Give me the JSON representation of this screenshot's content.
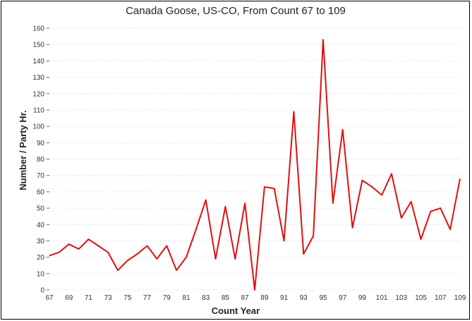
{
  "chart_data": {
    "type": "line",
    "title": "Canada Goose, US-CO,  From Count 67 to 109",
    "xlabel": "Count Year",
    "ylabel": "Number / Party Hr.",
    "xlim": [
      67,
      109
    ],
    "ylim": [
      0,
      160
    ],
    "y_ticks": [
      0,
      10,
      20,
      30,
      40,
      50,
      60,
      70,
      80,
      90,
      100,
      110,
      120,
      130,
      140,
      150,
      160
    ],
    "x_ticks": [
      67,
      69,
      71,
      73,
      75,
      77,
      79,
      81,
      83,
      85,
      87,
      89,
      91,
      93,
      95,
      97,
      99,
      101,
      103,
      105,
      107,
      109
    ],
    "grid": true,
    "colors": {
      "series": "#dd1111",
      "grid": "#e6e6e6",
      "frame": "#000000"
    },
    "series": [
      {
        "x": [
          67,
          68,
          69,
          70,
          71,
          72,
          73,
          74,
          75,
          76,
          77,
          78,
          79,
          80,
          81,
          82,
          83,
          84,
          85,
          86,
          87,
          88,
          89,
          90,
          91,
          92,
          93,
          94,
          95,
          96,
          97,
          98,
          99,
          100,
          101,
          102,
          103,
          104,
          105,
          106,
          107,
          108,
          109
        ],
        "values": [
          21,
          23,
          28,
          25,
          31,
          27,
          23,
          12,
          18,
          22,
          27,
          19,
          27,
          12,
          20,
          37,
          55,
          19,
          51,
          19,
          53,
          0,
          63,
          62,
          30,
          109,
          22,
          33,
          153,
          53,
          98,
          38,
          67,
          63,
          58,
          71,
          44,
          54,
          31,
          48,
          50,
          37,
          68
        ]
      }
    ]
  }
}
